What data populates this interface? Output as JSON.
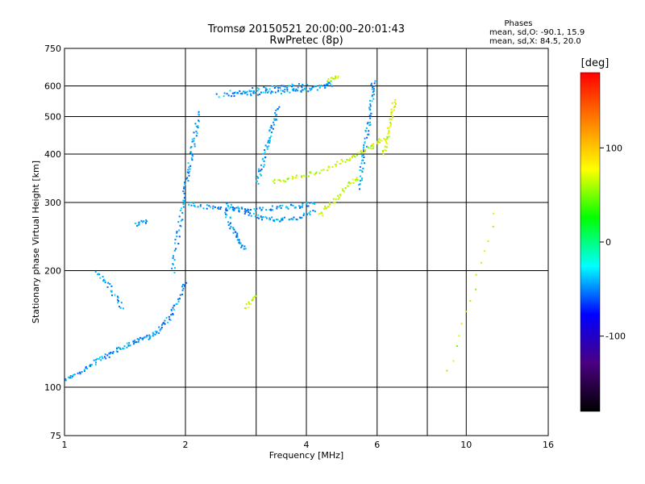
{
  "chart_data": {
    "type": "scatter",
    "title": "Tromsø 20150521 20:00:00–20:01:43",
    "subtitle": "RwPretec (8p)",
    "xlabel": "Frequency [MHz]",
    "ylabel": "Stationary phase Virtual Height [km]",
    "x_scale": "log",
    "y_scale": "log",
    "xlim": [
      1,
      16
    ],
    "ylim": [
      75,
      750
    ],
    "x_ticks": [
      "1",
      "2",
      "4",
      "6",
      "10",
      "16"
    ],
    "x_grid_values": [
      1,
      2,
      3,
      4,
      6,
      8,
      10,
      16
    ],
    "y_ticks": [
      "75",
      "100",
      "200",
      "300",
      "400",
      "500",
      "600",
      "750"
    ],
    "y_grid_values": [
      75,
      100,
      200,
      300,
      400,
      500,
      600,
      750
    ],
    "grid": true,
    "colorbar": {
      "label": "[deg]",
      "range": [
        -180,
        180
      ],
      "ticks": [
        "100",
        "0",
        "-100"
      ],
      "tick_values": [
        100,
        0,
        -100
      ],
      "colors": [
        "#000000",
        "#4b0082",
        "#0000ff",
        "#00ffff",
        "#00ff00",
        "#ffff00",
        "#ff8000",
        "#ff0000"
      ]
    },
    "stats": {
      "title": "Phases",
      "line1": "mean, sd,O: -90.1, 15.9",
      "line2": "mean, sd,X: 84.5, 20.0"
    },
    "series": [
      {
        "mode": "O",
        "approx_phase_deg": -90,
        "traces": [
          [
            [
              1.0,
              105
            ],
            [
              1.1,
              110
            ],
            [
              1.2,
              118
            ],
            [
              1.3,
              122
            ],
            [
              1.4,
              128
            ],
            [
              1.5,
              132
            ],
            [
              1.6,
              135
            ],
            [
              1.7,
              140
            ],
            [
              1.8,
              150
            ],
            [
              1.9,
              165
            ],
            [
              2.0,
              190
            ]
          ],
          [
            [
              1.85,
              200
            ],
            [
              1.9,
              240
            ],
            [
              1.95,
              290
            ],
            [
              2.0,
              340
            ],
            [
              2.05,
              390
            ],
            [
              2.1,
              440
            ],
            [
              2.15,
              520
            ]
          ],
          [
            [
              2.0,
              300
            ],
            [
              2.3,
              292
            ],
            [
              2.6,
              290
            ],
            [
              3.0,
              290
            ],
            [
              3.4,
              292
            ],
            [
              3.8,
              295
            ],
            [
              4.2,
              300
            ]
          ],
          [
            [
              2.5,
              300
            ],
            [
              2.8,
              285
            ],
            [
              3.1,
              275
            ],
            [
              3.4,
              272
            ],
            [
              3.8,
              275
            ],
            [
              4.2,
              285
            ]
          ],
          [
            [
              2.4,
              570
            ],
            [
              2.8,
              575
            ],
            [
              3.2,
              580
            ],
            [
              3.6,
              585
            ],
            [
              4.0,
              590
            ],
            [
              4.4,
              600
            ],
            [
              4.6,
              610
            ]
          ],
          [
            [
              2.6,
              580
            ],
            [
              3.0,
              590
            ],
            [
              3.5,
              600
            ],
            [
              4.0,
              605
            ]
          ],
          [
            [
              3.0,
              340
            ],
            [
              3.1,
              380
            ],
            [
              3.2,
              430
            ],
            [
              3.3,
              480
            ],
            [
              3.4,
              530
            ]
          ],
          [
            [
              5.4,
              330
            ],
            [
              5.5,
              380
            ],
            [
              5.6,
              430
            ],
            [
              5.7,
              490
            ],
            [
              5.8,
              560
            ],
            [
              5.85,
              630
            ]
          ],
          [
            [
              2.5,
              290
            ],
            [
              2.6,
              260
            ],
            [
              2.7,
              240
            ],
            [
              2.8,
              230
            ]
          ],
          [
            [
              1.5,
              265
            ],
            [
              1.6,
              270
            ]
          ],
          [
            [
              1.2,
              200
            ],
            [
              1.3,
              180
            ],
            [
              1.4,
              160
            ]
          ]
        ]
      },
      {
        "mode": "X",
        "approx_phase_deg": 85,
        "traces": [
          [
            [
              3.3,
              340
            ],
            [
              3.7,
              350
            ],
            [
              4.2,
              360
            ],
            [
              4.8,
              380
            ],
            [
              5.3,
              400
            ],
            [
              5.8,
              420
            ],
            [
              6.2,
              440
            ]
          ],
          [
            [
              4.3,
              280
            ],
            [
              4.6,
              300
            ],
            [
              5.0,
              330
            ],
            [
              5.4,
              350
            ]
          ],
          [
            [
              6.2,
              400
            ],
            [
              6.35,
              450
            ],
            [
              6.5,
              500
            ],
            [
              6.6,
              560
            ]
          ],
          [
            [
              4.5,
              620
            ],
            [
              4.8,
              640
            ]
          ],
          [
            [
              2.8,
              160
            ],
            [
              3.0,
              175
            ]
          ],
          [
            [
              9.0,
              110
            ],
            [
              12.0,
              300
            ]
          ]
        ]
      }
    ]
  }
}
